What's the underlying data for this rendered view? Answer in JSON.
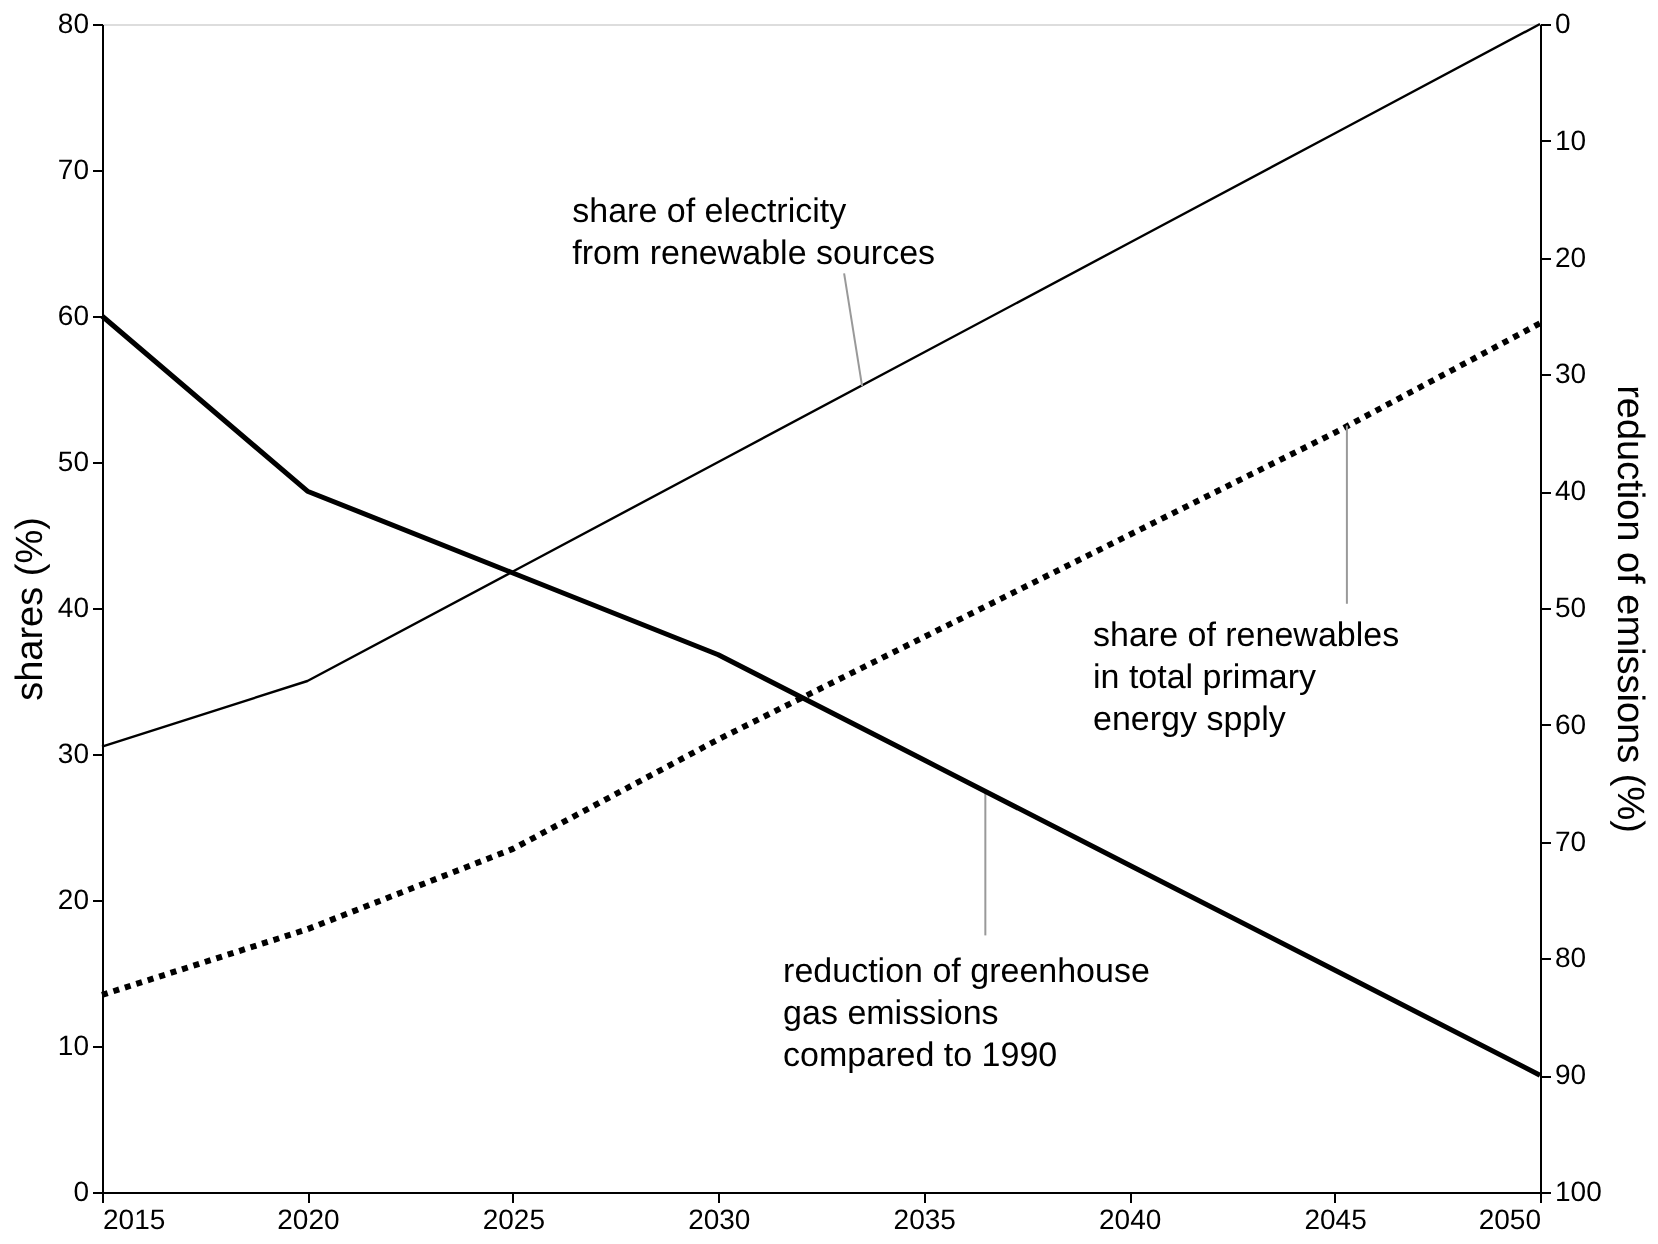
{
  "chart_data": {
    "type": "line",
    "x": [
      2015,
      2020,
      2025,
      2030,
      2035,
      2040,
      2045,
      2050
    ],
    "series": [
      {
        "color": "#000000",
        "line_style": "solid",
        "values": [
          30.5,
          35,
          42.5,
          50,
          57.5,
          65,
          72.5,
          80
        ]
      },
      {
        "color": "#000000",
        "line_style": "dotted",
        "values": [
          13.5,
          18,
          23.5,
          31,
          38,
          45,
          52,
          59.5
        ]
      },
      {
        "color": "#000000",
        "line_style": "solid",
        "axis": "y2",
        "values": [
          25,
          40,
          47,
          54,
          63,
          72,
          81,
          90
        ]
      }
    ],
    "ylabel": "shares (%)",
    "y2label": "reduction of emissions (%)",
    "xlim": [
      2015,
      2050
    ],
    "xticks": [
      2015,
      2020,
      2025,
      2030,
      2035,
      2040,
      2045,
      2050
    ],
    "ylim": [
      0,
      80
    ],
    "yticks": [
      0,
      10,
      20,
      30,
      40,
      50,
      60,
      70,
      80
    ],
    "y2lim": [
      100,
      0
    ],
    "y2ticks": [
      0,
      10,
      20,
      30,
      40,
      50,
      60,
      70,
      80,
      90,
      100
    ],
    "marker": "none",
    "annotations": [
      {
        "text": "share of electricity\nfrom renewable sources",
        "x": 2033.5,
        "y": 55.2
      },
      {
        "text": "share of renewables\nin total primary\nenergy spply",
        "x": 2045.3,
        "y": 52.5
      },
      {
        "text": "reduction of greenhouse\ngas emissions\ncompared to 1990",
        "x": 2036.5,
        "y": 27.4
      }
    ]
  }
}
